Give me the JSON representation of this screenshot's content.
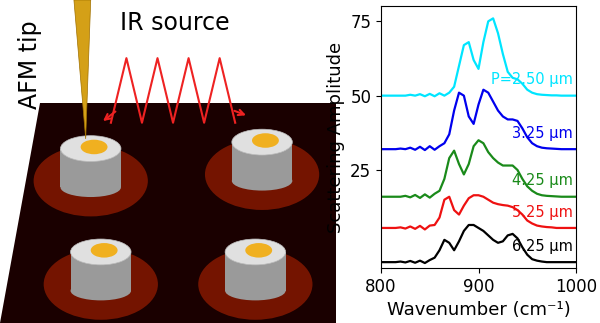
{
  "illustration": {
    "tip_label": "AFM tip",
    "source_label": "IR source"
  },
  "chart_data": {
    "type": "line",
    "x_label": "Wavenumber (cm⁻¹)",
    "y_label": "Scattering Amplitude",
    "x": [
      800,
      805,
      810,
      815,
      820,
      825,
      830,
      835,
      840,
      845,
      850,
      855,
      860,
      865,
      870,
      875,
      880,
      885,
      890,
      895,
      900,
      905,
      910,
      915,
      920,
      925,
      930,
      935,
      940,
      945,
      950,
      955,
      960,
      965,
      970,
      975,
      980,
      985,
      990,
      995,
      1000
    ],
    "xlim": [
      800,
      1000
    ],
    "xticks": [
      800,
      900,
      1000
    ],
    "ylim": [
      -8,
      80
    ],
    "yticks": [
      25,
      50,
      75
    ],
    "series": [
      {
        "name": "P=2.50 µm",
        "color": "#00e5ff",
        "values": [
          50,
          50,
          50,
          50,
          50,
          50,
          50.3,
          50,
          50.5,
          49.8,
          50.6,
          49.8,
          50.8,
          50,
          51,
          53,
          60,
          67,
          68,
          62,
          59,
          68,
          75,
          76,
          71,
          64,
          58,
          56,
          55.5,
          54,
          52,
          51,
          50.5,
          50.3,
          50.2,
          50.1,
          50.1,
          50,
          50,
          50,
          50
        ]
      },
      {
        "name": "3.25 µm",
        "color": "#0000ee",
        "values": [
          32,
          32,
          32,
          32,
          32.2,
          32,
          32.5,
          31.8,
          32.8,
          31.7,
          33,
          31.8,
          33,
          34,
          37,
          45,
          51,
          50,
          43,
          40.5,
          47,
          52,
          51,
          48,
          45,
          43,
          42,
          42,
          41.5,
          39,
          36,
          34,
          33,
          32.5,
          32.3,
          32.2,
          32.1,
          32,
          32,
          32,
          32
        ]
      },
      {
        "name": "4.25 µm",
        "color": "#1a8a1a",
        "values": [
          16,
          16,
          16,
          16,
          16,
          16.3,
          15.8,
          16.6,
          15.6,
          16.8,
          15.7,
          17,
          18,
          22,
          29,
          31.5,
          27,
          23.5,
          27,
          33,
          35,
          34,
          31,
          29,
          27.5,
          26.5,
          26.5,
          26.5,
          25,
          22,
          19.5,
          18,
          17,
          16.5,
          16.3,
          16.2,
          16.1,
          16,
          16,
          16,
          16
        ]
      },
      {
        "name": "5.25 µm",
        "color": "#ee1111",
        "values": [
          5.5,
          5.5,
          5.5,
          5.5,
          5.7,
          5.3,
          6,
          5.2,
          6.2,
          5,
          6.3,
          6.5,
          9,
          15,
          16,
          11.5,
          10,
          13,
          15.5,
          16.5,
          16.5,
          16,
          15,
          14,
          13.5,
          13.2,
          13,
          12.5,
          11.5,
          10,
          8,
          7,
          6.3,
          6,
          5.8,
          5.7,
          5.5,
          5.5,
          5.5,
          5.5,
          5.5
        ]
      },
      {
        "name": "6.25 µm",
        "color": "#000000",
        "values": [
          -6,
          -6,
          -6,
          -6,
          -5.8,
          -6.1,
          -5.6,
          -6.2,
          -5.5,
          -6.3,
          -5.3,
          -4.5,
          -2,
          1.5,
          0.5,
          -2,
          1,
          4.5,
          6.5,
          6.5,
          5.5,
          4.5,
          3,
          1.5,
          0.5,
          1,
          3,
          3.5,
          2,
          -1,
          -3.5,
          -5,
          -5.5,
          -5.8,
          -6,
          -6,
          -6,
          -6,
          -6,
          -6,
          -6
        ]
      }
    ]
  }
}
